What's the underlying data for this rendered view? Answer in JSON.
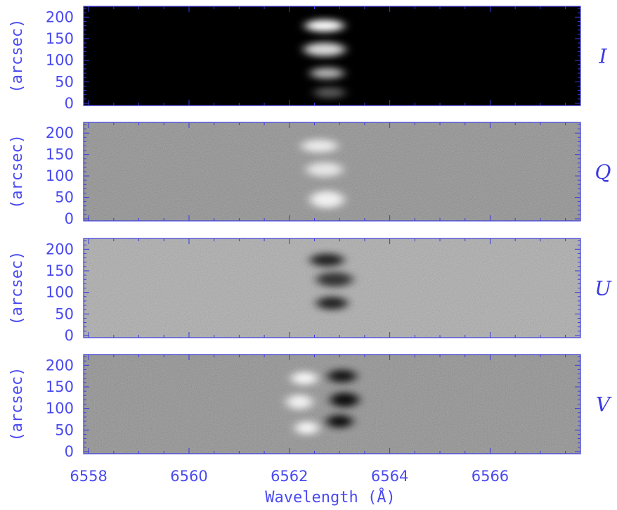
{
  "chart_data": {
    "type": "heatmap",
    "xlabel": "Wavelength (Å)",
    "xlim": [
      6557.9,
      6567.8
    ],
    "x_ticks": [
      6558,
      6560,
      6562,
      6564,
      6566
    ],
    "x_tick_labels": [
      "6558",
      "6560",
      "6562",
      "6564",
      "6566"
    ],
    "colormap": "grayscale",
    "panels": [
      {
        "stokes": "I",
        "ylabel": "(arcsec)",
        "ylim": [
          -5,
          225
        ],
        "y_ticks": [
          0,
          50,
          100,
          150,
          200
        ],
        "y_tick_labels": [
          "0",
          "50",
          "100",
          "150",
          "200"
        ],
        "background": "black",
        "features": [
          {
            "kind": "bright",
            "wavelength": 6562.7,
            "y": 180,
            "width_A": 0.55,
            "height_arcsec": 28,
            "strength": 1.0
          },
          {
            "kind": "bright",
            "wavelength": 6562.7,
            "y": 125,
            "width_A": 0.6,
            "height_arcsec": 32,
            "strength": 0.85
          },
          {
            "kind": "bright",
            "wavelength": 6562.75,
            "y": 70,
            "width_A": 0.45,
            "height_arcsec": 26,
            "strength": 0.7
          },
          {
            "kind": "bright",
            "wavelength": 6562.8,
            "y": 25,
            "width_A": 0.4,
            "height_arcsec": 25,
            "strength": 0.35
          }
        ]
      },
      {
        "stokes": "Q",
        "ylabel": "(arcsec)",
        "ylim": [
          -5,
          225
        ],
        "y_ticks": [
          0,
          50,
          100,
          150,
          200
        ],
        "y_tick_labels": [
          "0",
          "50",
          "100",
          "150",
          "200"
        ],
        "background": "gray",
        "features": [
          {
            "kind": "bright",
            "wavelength": 6562.6,
            "y": 170,
            "width_A": 0.5,
            "height_arcsec": 30,
            "strength": 0.8
          },
          {
            "kind": "bright",
            "wavelength": 6562.7,
            "y": 115,
            "width_A": 0.5,
            "height_arcsec": 34,
            "strength": 0.75
          },
          {
            "kind": "bright",
            "wavelength": 6562.75,
            "y": 45,
            "width_A": 0.45,
            "height_arcsec": 40,
            "strength": 0.85
          }
        ]
      },
      {
        "stokes": "U",
        "ylabel": "(arcsec)",
        "ylim": [
          -5,
          225
        ],
        "y_ticks": [
          0,
          50,
          100,
          150,
          200
        ],
        "y_tick_labels": [
          "0",
          "50",
          "100",
          "150",
          "200"
        ],
        "background": "light-gray",
        "features": [
          {
            "kind": "dark",
            "wavelength": 6562.75,
            "y": 175,
            "width_A": 0.45,
            "height_arcsec": 30,
            "strength": 0.8
          },
          {
            "kind": "dark",
            "wavelength": 6562.9,
            "y": 130,
            "width_A": 0.5,
            "height_arcsec": 34,
            "strength": 0.7
          },
          {
            "kind": "dark",
            "wavelength": 6562.85,
            "y": 75,
            "width_A": 0.4,
            "height_arcsec": 30,
            "strength": 0.8
          }
        ]
      },
      {
        "stokes": "V",
        "ylabel": "(arcsec)",
        "ylim": [
          -5,
          225
        ],
        "y_ticks": [
          0,
          50,
          100,
          150,
          200
        ],
        "y_tick_labels": [
          "0",
          "50",
          "100",
          "150",
          "200"
        ],
        "background": "gray",
        "features": [
          {
            "kind": "bright",
            "wavelength": 6562.3,
            "y": 170,
            "width_A": 0.3,
            "height_arcsec": 30,
            "strength": 0.9
          },
          {
            "kind": "bright",
            "wavelength": 6562.2,
            "y": 115,
            "width_A": 0.3,
            "height_arcsec": 34,
            "strength": 0.85
          },
          {
            "kind": "bright",
            "wavelength": 6562.35,
            "y": 55,
            "width_A": 0.25,
            "height_arcsec": 30,
            "strength": 0.9
          },
          {
            "kind": "dark",
            "wavelength": 6563.05,
            "y": 175,
            "width_A": 0.35,
            "height_arcsec": 30,
            "strength": 0.85
          },
          {
            "kind": "dark",
            "wavelength": 6563.1,
            "y": 120,
            "width_A": 0.35,
            "height_arcsec": 34,
            "strength": 0.9
          },
          {
            "kind": "dark",
            "wavelength": 6563.0,
            "y": 70,
            "width_A": 0.3,
            "height_arcsec": 30,
            "strength": 0.9
          }
        ]
      }
    ]
  },
  "colors": {
    "axis": "#3a3ae0",
    "text": "#4a4af0"
  }
}
